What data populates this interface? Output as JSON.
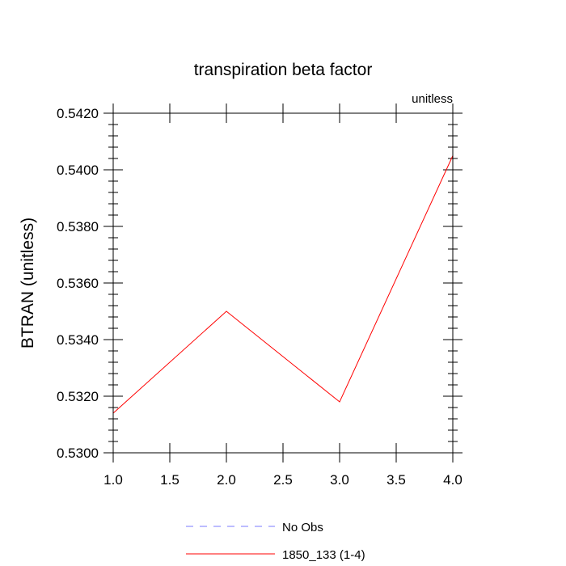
{
  "chart_data": {
    "type": "line",
    "title": "transpiration beta factor",
    "units_label": "unitless",
    "ylabel": "BTRAN  (unitless)",
    "xlabel": "",
    "xlim": [
      1.0,
      4.0
    ],
    "ylim": [
      0.53,
      0.542
    ],
    "x_ticks": [
      1.0,
      1.5,
      2.0,
      2.5,
      3.0,
      3.5,
      4.0
    ],
    "x_tick_labels": [
      "1.0",
      "1.5",
      "2.0",
      "2.5",
      "3.0",
      "3.5",
      "4.0"
    ],
    "y_ticks": [
      0.53,
      0.532,
      0.534,
      0.536,
      0.538,
      0.54,
      0.542
    ],
    "y_tick_labels": [
      "0.5300",
      "0.5320",
      "0.5340",
      "0.5360",
      "0.5380",
      "0.5400",
      "0.5420"
    ],
    "grid": false,
    "legend_position": "bottom",
    "series": [
      {
        "name": "No Obs",
        "x": [],
        "y": [],
        "color": "#7b7bff",
        "dash": "dashed"
      },
      {
        "name": "1850_133 (1-4)",
        "x": [
          1.0,
          2.0,
          3.0,
          4.0
        ],
        "y": [
          0.5314,
          0.535,
          0.5318,
          0.5405
        ],
        "color": "#ff0000",
        "dash": "solid"
      }
    ]
  }
}
